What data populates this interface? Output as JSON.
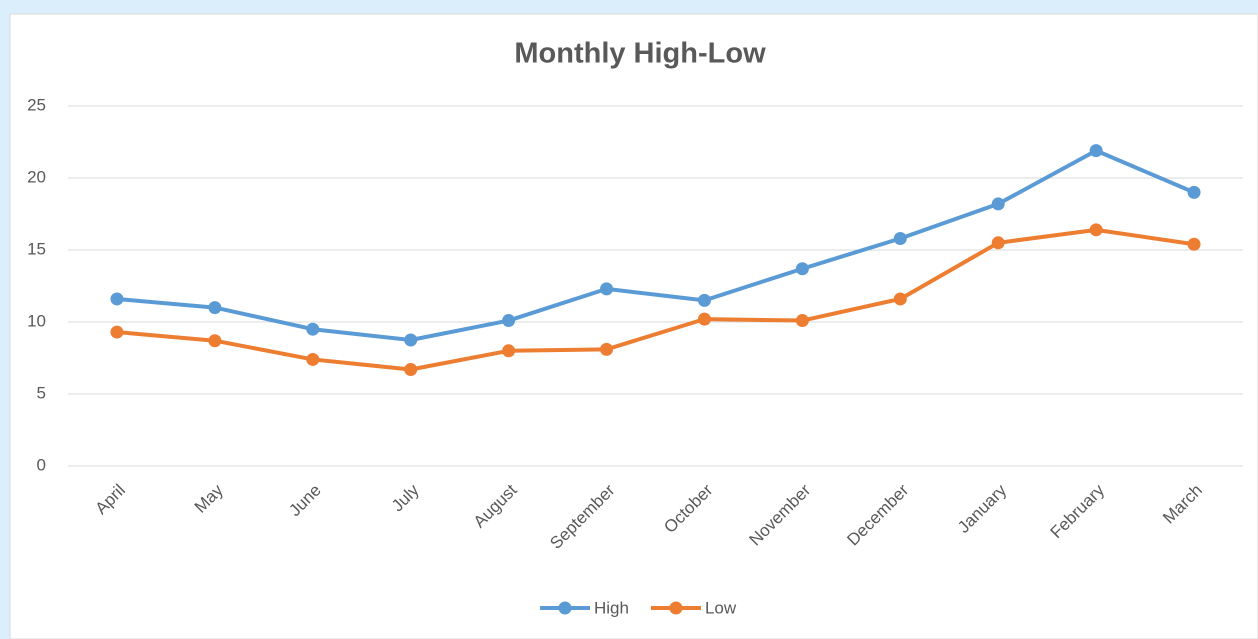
{
  "chart_data": {
    "type": "line",
    "title": "Monthly High-Low",
    "categories": [
      "April",
      "May",
      "June",
      "July",
      "August",
      "September",
      "October",
      "November",
      "December",
      "January",
      "February",
      "March"
    ],
    "series": [
      {
        "name": "High",
        "color": "#5b9bd5",
        "values": [
          11.6,
          11.0,
          9.5,
          8.75,
          10.1,
          12.3,
          11.5,
          13.7,
          15.8,
          18.2,
          21.9,
          19.0
        ]
      },
      {
        "name": "Low",
        "color": "#ed7d31",
        "values": [
          9.3,
          8.7,
          7.4,
          6.7,
          8.0,
          8.1,
          10.2,
          10.1,
          11.6,
          15.5,
          16.4,
          15.4
        ]
      }
    ],
    "ylim": [
      0,
      25
    ],
    "yticks": [
      0,
      5,
      10,
      15,
      20,
      25
    ],
    "grid": true,
    "legend": "bottom"
  }
}
